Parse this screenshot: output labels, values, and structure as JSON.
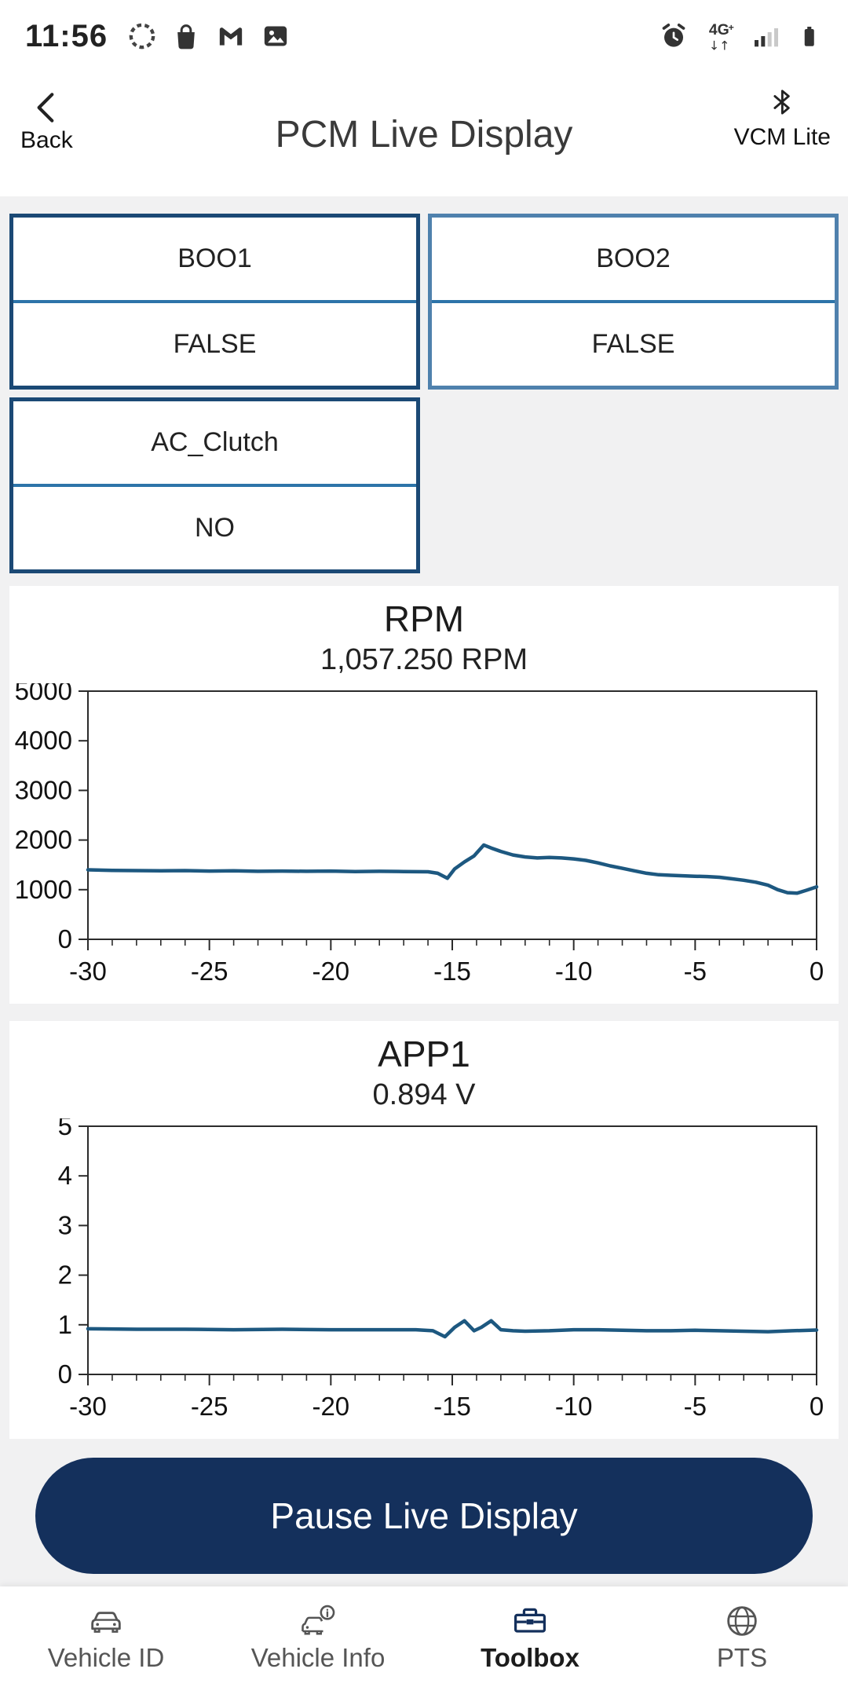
{
  "colors": {
    "navy": "#14305c",
    "chart_line": "#1d5880",
    "tile_border_dark": "#1b4975",
    "tile_border_light": "#4f81ad",
    "tile_divider": "#2d74a9",
    "content_background": "#f1f1f2"
  },
  "status_bar": {
    "time": "11:56",
    "network": "4G+",
    "arrows": "↓↑",
    "icons": [
      "spinner-icon",
      "bag-icon",
      "gmail-icon",
      "gallery-icon",
      "alarm-icon",
      "network-4g-icon",
      "signal-icon",
      "battery-icon"
    ]
  },
  "header": {
    "back": "Back",
    "title": "PCM Live Display",
    "device": "VCM Lite"
  },
  "tiles": [
    {
      "name": "BOO1",
      "value": "FALSE",
      "border": "dark"
    },
    {
      "name": "BOO2",
      "value": "FALSE",
      "border": "light"
    },
    {
      "name": "AC_Clutch",
      "value": "NO",
      "border": "dark"
    }
  ],
  "pause_button_label": "Pause Live Display",
  "bottom_nav": [
    {
      "label": "Vehicle ID",
      "icon": "car-icon",
      "active": false
    },
    {
      "label": "Vehicle Info",
      "icon": "car-info-icon",
      "active": false
    },
    {
      "label": "Toolbox",
      "icon": "toolbox-icon",
      "active": true
    },
    {
      "label": "PTS",
      "icon": "globe-icon",
      "active": false
    }
  ],
  "chart_data": [
    {
      "type": "line",
      "title": "RPM",
      "current_value": "1,057.250 RPM",
      "unit": "RPM",
      "xlabel": "",
      "ylabel": "",
      "xlim": [
        -30,
        0
      ],
      "ylim": [
        0,
        5000
      ],
      "x_ticks": [
        -30,
        -25,
        -20,
        -15,
        -10,
        -5,
        0
      ],
      "y_ticks": [
        0,
        1000,
        2000,
        3000,
        4000,
        5000
      ],
      "grid": false,
      "legend": "none",
      "line_color": "#1d5880",
      "x": [
        -30,
        -29,
        -28,
        -27,
        -26,
        -25,
        -24,
        -23,
        -22,
        -21,
        -20,
        -19,
        -18,
        -17,
        -16,
        -15.6,
        -15.2,
        -14.9,
        -14.5,
        -14.1,
        -13.7,
        -13.4,
        -13,
        -12.5,
        -12,
        -11.5,
        -11,
        -10.5,
        -10,
        -9.5,
        -9,
        -8.5,
        -8,
        -7.5,
        -7,
        -6.5,
        -6,
        -5.5,
        -5,
        -4.5,
        -4,
        -3.5,
        -3,
        -2.5,
        -2,
        -1.6,
        -1.2,
        -0.8,
        -0.4,
        0
      ],
      "y": [
        1400,
        1390,
        1385,
        1380,
        1385,
        1375,
        1380,
        1370,
        1375,
        1370,
        1375,
        1365,
        1370,
        1365,
        1360,
        1330,
        1230,
        1420,
        1560,
        1680,
        1900,
        1840,
        1770,
        1700,
        1660,
        1640,
        1650,
        1640,
        1620,
        1590,
        1540,
        1480,
        1430,
        1380,
        1330,
        1300,
        1290,
        1280,
        1270,
        1265,
        1250,
        1220,
        1190,
        1150,
        1090,
        1000,
        940,
        930,
        990,
        1057
      ]
    },
    {
      "type": "line",
      "title": "APP1",
      "current_value": "0.894 V",
      "unit": "V",
      "xlabel": "",
      "ylabel": "",
      "xlim": [
        -30,
        0
      ],
      "ylim": [
        0,
        5
      ],
      "x_ticks": [
        -30,
        -25,
        -20,
        -15,
        -10,
        -5,
        0
      ],
      "y_ticks": [
        0,
        1,
        2,
        3,
        4,
        5
      ],
      "grid": false,
      "legend": "none",
      "line_color": "#1d5880",
      "x": [
        -30,
        -28,
        -26,
        -24,
        -22,
        -20,
        -18,
        -16.5,
        -15.8,
        -15.3,
        -14.9,
        -14.5,
        -14.1,
        -13.8,
        -13.4,
        -13,
        -12.5,
        -12,
        -11,
        -10,
        -9,
        -8,
        -7,
        -6,
        -5,
        -4,
        -3,
        -2,
        -1,
        0
      ],
      "y": [
        0.92,
        0.91,
        0.91,
        0.9,
        0.91,
        0.9,
        0.9,
        0.9,
        0.88,
        0.76,
        0.95,
        1.08,
        0.88,
        0.95,
        1.08,
        0.9,
        0.88,
        0.87,
        0.88,
        0.9,
        0.9,
        0.89,
        0.88,
        0.88,
        0.89,
        0.88,
        0.87,
        0.86,
        0.88,
        0.894
      ]
    }
  ]
}
